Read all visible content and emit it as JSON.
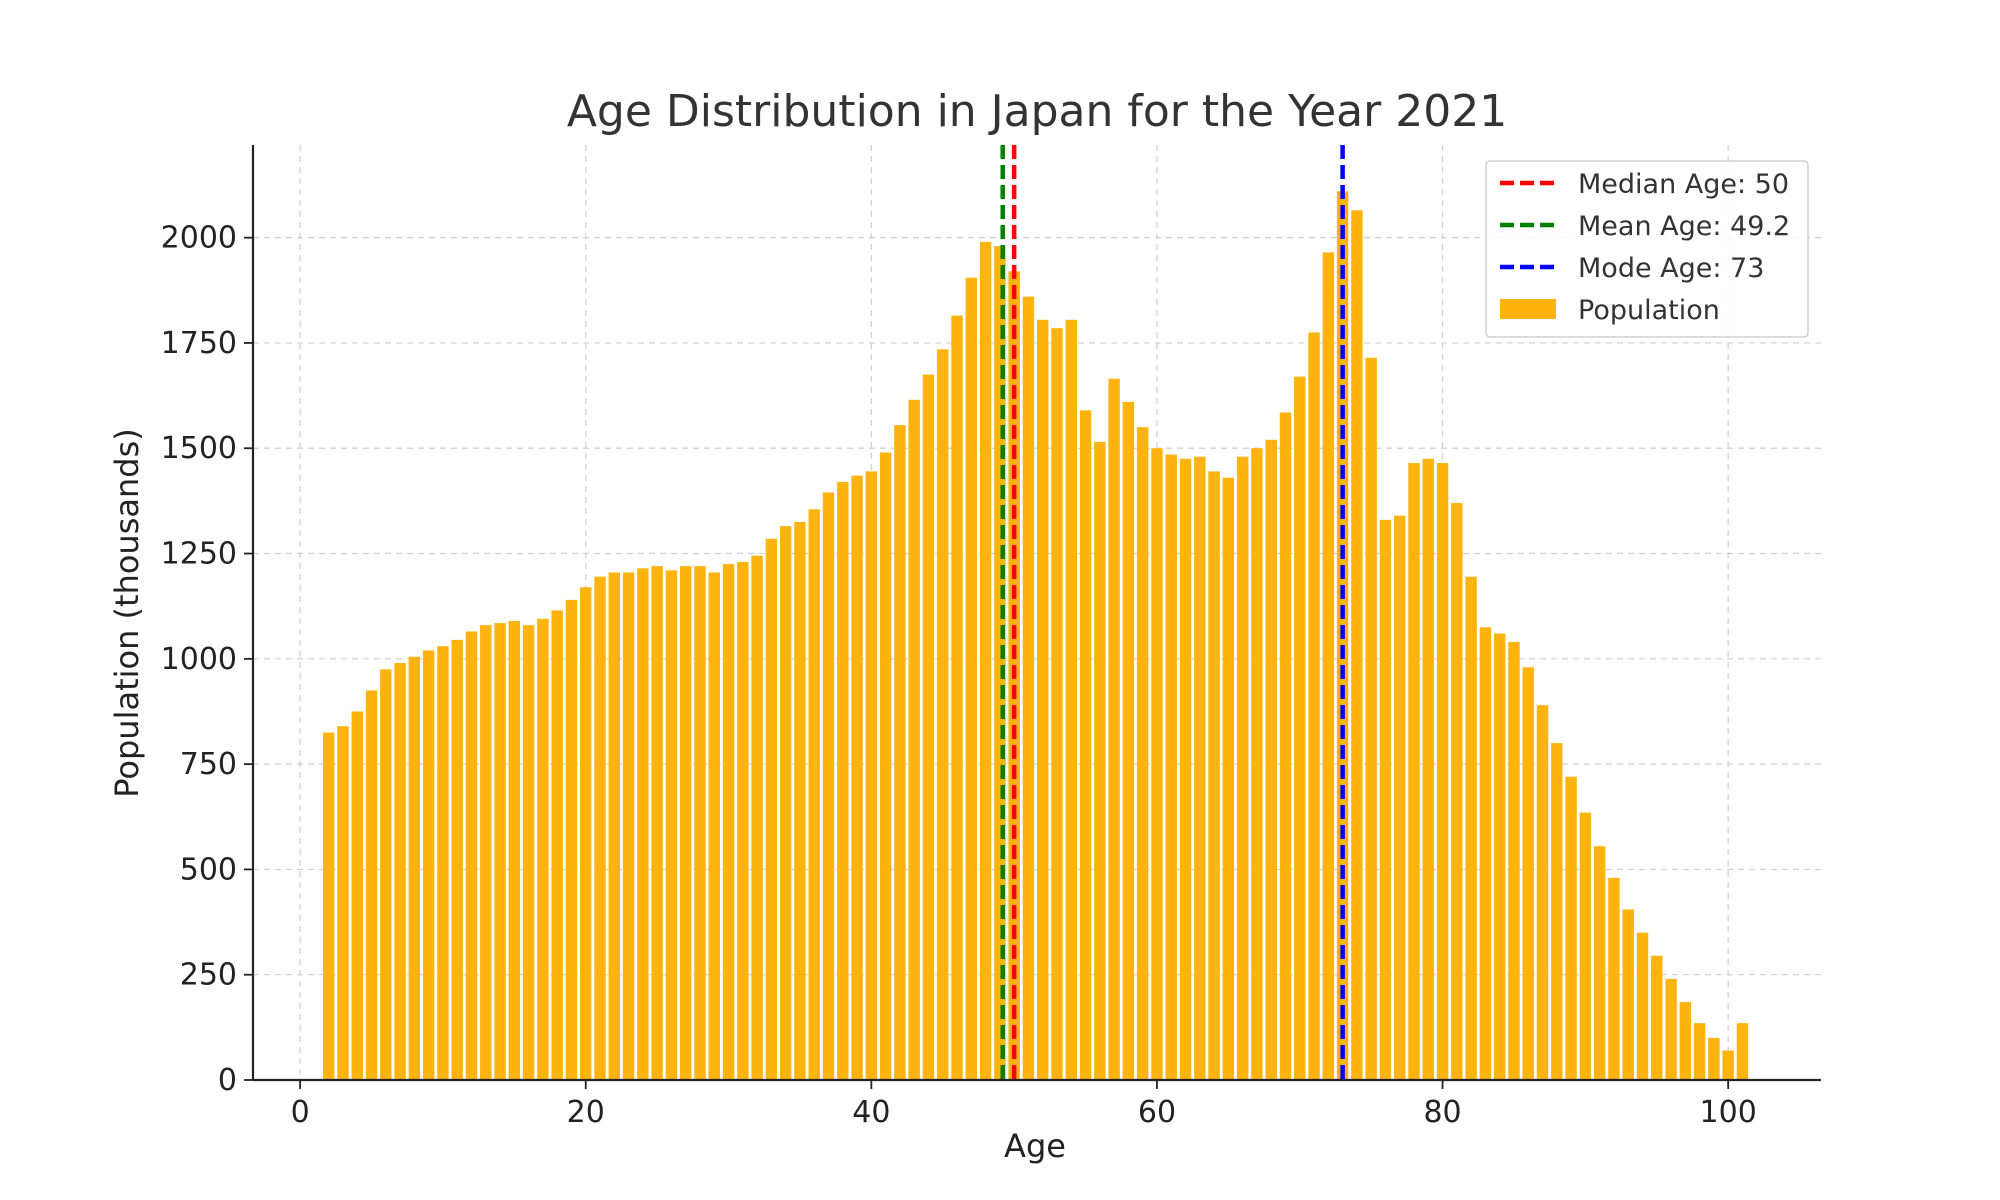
{
  "chart_data": {
    "type": "bar",
    "title": "Age Distribution in Japan for the Year 2021",
    "xlabel": "Age",
    "ylabel": "Population (thousands)",
    "xlim": [
      -3.3,
      106.5
    ],
    "ylim": [
      0,
      2220
    ],
    "xticks": [
      0,
      20,
      40,
      60,
      80,
      100
    ],
    "yticks": [
      0,
      250,
      500,
      750,
      1000,
      1250,
      1500,
      1750,
      2000
    ],
    "grid": true,
    "legend_position": "top-right",
    "bar_color": "#FFB30F",
    "ages": [
      2,
      3,
      4,
      5,
      6,
      7,
      8,
      9,
      10,
      11,
      12,
      13,
      14,
      15,
      16,
      17,
      18,
      19,
      20,
      21,
      22,
      23,
      24,
      25,
      26,
      27,
      28,
      29,
      30,
      31,
      32,
      33,
      34,
      35,
      36,
      37,
      38,
      39,
      40,
      41,
      42,
      43,
      44,
      45,
      46,
      47,
      48,
      49,
      50,
      51,
      52,
      53,
      54,
      55,
      56,
      57,
      58,
      59,
      60,
      61,
      62,
      63,
      64,
      65,
      66,
      67,
      68,
      69,
      70,
      71,
      72,
      73,
      74,
      75,
      76,
      77,
      78,
      79,
      80,
      81,
      82,
      83,
      84,
      85,
      86,
      87,
      88,
      89,
      90,
      91,
      92,
      93,
      94,
      95,
      96,
      97,
      98,
      99,
      100,
      101
    ],
    "values": [
      825,
      840,
      875,
      925,
      975,
      990,
      1005,
      1020,
      1030,
      1045,
      1065,
      1080,
      1085,
      1090,
      1080,
      1095,
      1115,
      1140,
      1170,
      1195,
      1205,
      1205,
      1215,
      1220,
      1210,
      1220,
      1220,
      1205,
      1225,
      1230,
      1245,
      1285,
      1315,
      1325,
      1355,
      1395,
      1420,
      1435,
      1445,
      1490,
      1555,
      1615,
      1675,
      1735,
      1815,
      1905,
      1990,
      1980,
      1920,
      1860,
      1805,
      1785,
      1805,
      1590,
      1515,
      1665,
      1610,
      1550,
      1500,
      1485,
      1475,
      1480,
      1445,
      1430,
      1480,
      1500,
      1520,
      1585,
      1670,
      1775,
      1965,
      2110,
      2065,
      1715,
      1330,
      1340,
      1465,
      1475,
      1465,
      1370,
      1195,
      1075,
      1060,
      1040,
      980,
      890,
      800,
      720,
      635,
      555,
      480,
      405,
      350,
      295,
      240,
      185,
      135,
      100,
      70,
      135
    ],
    "reference_lines": [
      {
        "name": "Median Age: 50",
        "x": 50,
        "color": "#ff0000"
      },
      {
        "name": "Mean Age: 49.2",
        "x": 49.2,
        "color": "#008000"
      },
      {
        "name": "Mode Age: 73",
        "x": 73,
        "color": "#0000ff"
      }
    ],
    "legend": [
      {
        "label": "Median Age: 50",
        "kind": "dashed-line",
        "color": "#ff0000"
      },
      {
        "label": "Mean Age: 49.2",
        "kind": "dashed-line",
        "color": "#008000"
      },
      {
        "label": "Mode Age: 73",
        "kind": "dashed-line",
        "color": "#0000ff"
      },
      {
        "label": "Population",
        "kind": "patch",
        "color": "#FFB30F"
      }
    ]
  }
}
